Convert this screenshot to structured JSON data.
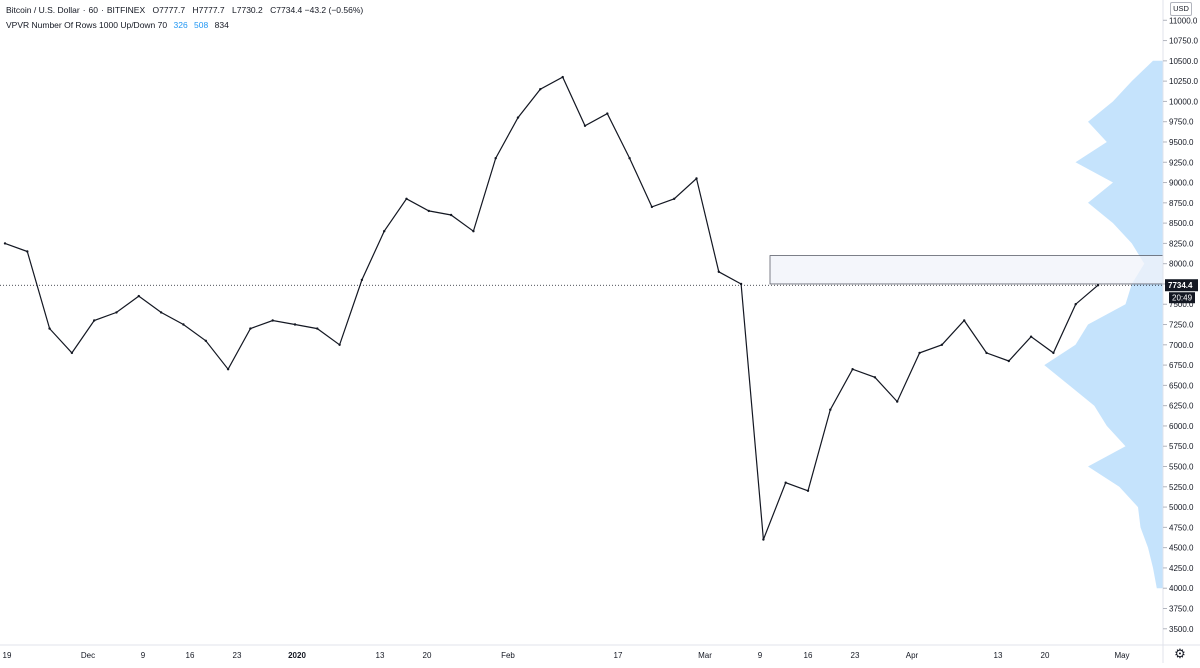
{
  "legend": {
    "symbol": "Bitcoin / U.S. Dollar",
    "interval": "60",
    "exchange": "BITFINEX",
    "open": "O7777.7",
    "high": "H7777.7",
    "low": "L7730.2",
    "change": "C7734.4 −43.2 (−0.56%)",
    "indicator": "VPVR Number Of Rows 1000 Up/Down 70",
    "up_volume": "326",
    "down_volume": "508",
    "total_volume": "834"
  },
  "currency": "USD",
  "price_label": "7734.4",
  "countdown": "20:49",
  "colors": {
    "candle": "#131722",
    "volume_profile": "#bbdefb",
    "zone": "#f0f3fa",
    "price_badge": "#131722"
  },
  "chart_data": {
    "type": "candlestick",
    "symbol": "BTCUSD",
    "ylim": [
      3300,
      11250
    ],
    "y_ticks": [
      "3500.0",
      "3750.0",
      "4000.0",
      "4250.0",
      "4500.0",
      "4750.0",
      "5000.0",
      "5250.0",
      "5500.0",
      "5750.0",
      "6000.0",
      "6250.0",
      "6500.0",
      "6750.0",
      "7000.0",
      "7250.0",
      "7500.0",
      "7750.0",
      "8000.0",
      "8250.0",
      "8500.0",
      "8750.0",
      "9000.0",
      "9250.0",
      "9500.0",
      "9750.0",
      "10000.0",
      "10250.0",
      "10500.0",
      "10750.0",
      "11000.0"
    ],
    "x_ticks": [
      "19",
      "Dec",
      "9",
      "16",
      "23",
      "2020",
      "13",
      "20",
      "Feb",
      "17",
      "Mar",
      "9",
      "16",
      "23",
      "Apr",
      "13",
      "20",
      "May"
    ],
    "last_price": 7734.4,
    "resistance_zone": [
      7750,
      8100
    ],
    "close_series": [
      [
        "19",
        8250
      ],
      [
        "",
        8150
      ],
      [
        "",
        7200
      ],
      [
        "",
        6900
      ],
      [
        "",
        7300
      ],
      [
        "Dec",
        7400
      ],
      [
        "",
        7600
      ],
      [
        "9",
        7400
      ],
      [
        "",
        7250
      ],
      [
        "16",
        7050
      ],
      [
        "",
        6700
      ],
      [
        "",
        7200
      ],
      [
        "23",
        7300
      ],
      [
        "",
        7250
      ],
      [
        "2020",
        7200
      ],
      [
        "",
        7000
      ],
      [
        "",
        7800
      ],
      [
        "13",
        8400
      ],
      [
        "",
        8800
      ],
      [
        "20",
        8650
      ],
      [
        "",
        8600
      ],
      [
        "",
        8400
      ],
      [
        "Feb",
        9300
      ],
      [
        "",
        9800
      ],
      [
        "",
        10150
      ],
      [
        "17",
        10300
      ],
      [
        "",
        9700
      ],
      [
        "",
        9850
      ],
      [
        "",
        9300
      ],
      [
        "",
        8700
      ],
      [
        "Mar",
        8800
      ],
      [
        "",
        9050
      ],
      [
        "9",
        7900
      ],
      [
        "",
        7750
      ],
      [
        "",
        4600
      ],
      [
        "16",
        5300
      ],
      [
        "",
        5200
      ],
      [
        "",
        6200
      ],
      [
        "23",
        6700
      ],
      [
        "",
        6600
      ],
      [
        "",
        6300
      ],
      [
        "Apr",
        6900
      ],
      [
        "",
        7000
      ],
      [
        "",
        7300
      ],
      [
        "13",
        6900
      ],
      [
        "",
        6800
      ],
      [
        "20",
        7100
      ],
      [
        "",
        6900
      ],
      [
        "",
        7500
      ],
      [
        "",
        7734.4
      ]
    ],
    "volume_profile": [
      [
        4000,
        0.05
      ],
      [
        4250,
        0.08
      ],
      [
        4500,
        0.12
      ],
      [
        4750,
        0.18
      ],
      [
        5000,
        0.2
      ],
      [
        5250,
        0.35
      ],
      [
        5500,
        0.6
      ],
      [
        5750,
        0.3
      ],
      [
        6000,
        0.45
      ],
      [
        6250,
        0.55
      ],
      [
        6500,
        0.75
      ],
      [
        6750,
        0.95
      ],
      [
        7000,
        0.7
      ],
      [
        7250,
        0.6
      ],
      [
        7500,
        0.3
      ],
      [
        7750,
        0.25
      ],
      [
        8000,
        0.15
      ],
      [
        8250,
        0.25
      ],
      [
        8500,
        0.4
      ],
      [
        8750,
        0.6
      ],
      [
        9000,
        0.4
      ],
      [
        9250,
        0.7
      ],
      [
        9500,
        0.45
      ],
      [
        9750,
        0.6
      ],
      [
        10000,
        0.4
      ],
      [
        10250,
        0.25
      ],
      [
        10500,
        0.08
      ]
    ]
  }
}
